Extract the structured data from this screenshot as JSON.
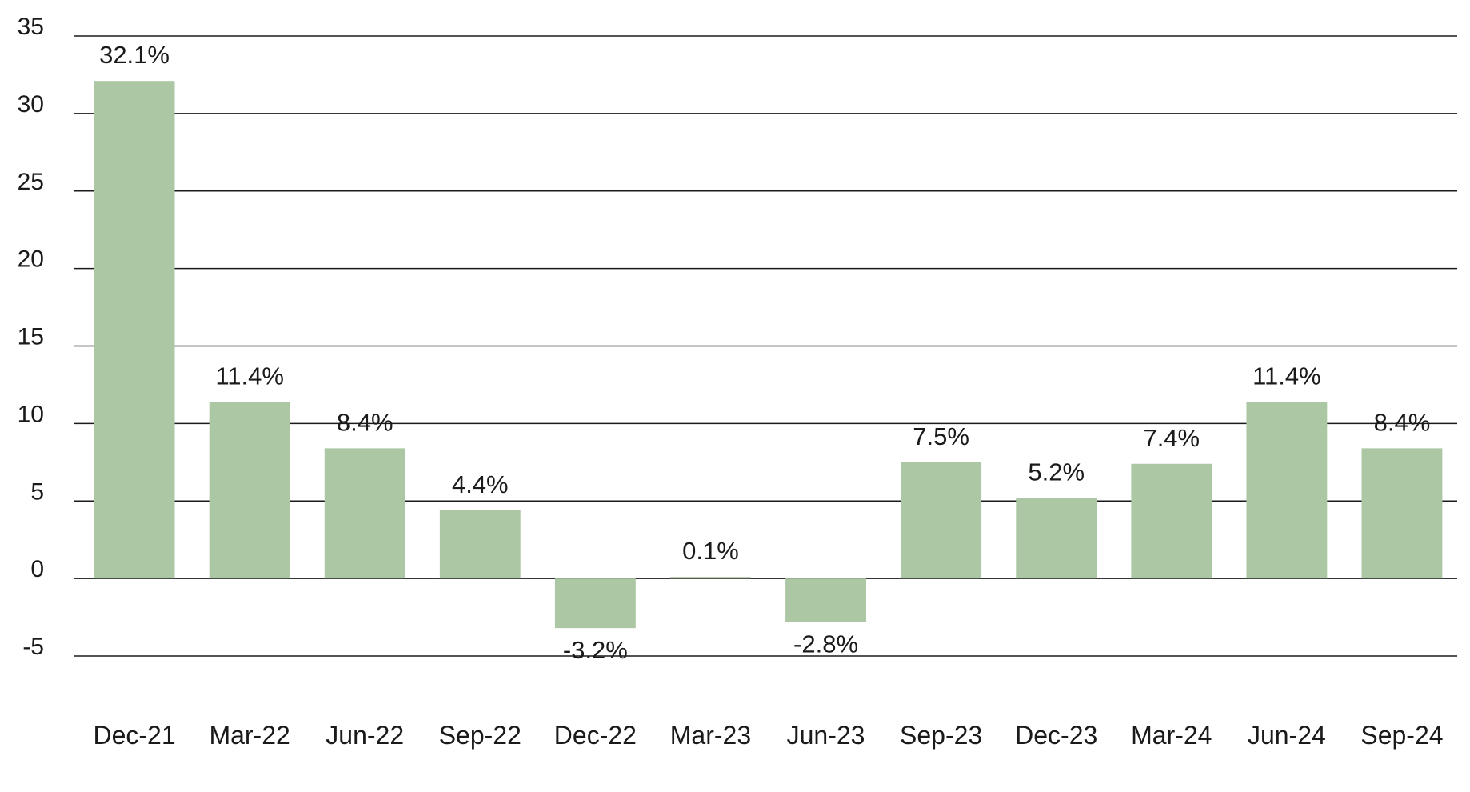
{
  "chart_data": {
    "type": "bar",
    "categories": [
      "Dec-21",
      "Mar-22",
      "Jun-22",
      "Sep-22",
      "Dec-22",
      "Mar-23",
      "Jun-23",
      "Sep-23",
      "Dec-23",
      "Mar-24",
      "Jun-24",
      "Sep-24"
    ],
    "values": [
      32.1,
      11.4,
      8.4,
      4.4,
      -3.2,
      0.1,
      -2.8,
      7.5,
      5.2,
      7.4,
      11.4,
      8.4
    ],
    "data_labels": [
      "32.1%",
      "11.4%",
      "8.4%",
      "4.4%",
      "-3.2%",
      "0.1%",
      "-2.8%",
      "7.5%",
      "5.2%",
      "7.4%",
      "11.4%",
      "8.4%"
    ],
    "y_ticks": [
      "35",
      "30",
      "25",
      "20",
      "15",
      "10",
      "5",
      "0",
      "-5"
    ],
    "ylim": [
      -5,
      35
    ],
    "grid": true,
    "legend": "none",
    "title": "",
    "xlabel": "",
    "ylabel": "",
    "colors": {
      "bar": "#abc7a3",
      "grid": "#1a1a1a",
      "text": "#1a1a1a"
    }
  }
}
